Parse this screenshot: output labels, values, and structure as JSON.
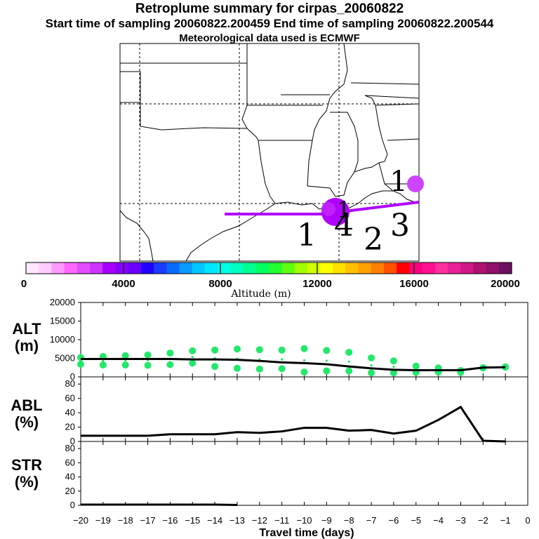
{
  "header": {
    "title": "Retroplume summary for cirpas_20060822",
    "sampling_line": "Start time of sampling 20060822.200459     End time of sampling 20060822.200544",
    "met_line": "Meteorological data used is ECMWF"
  },
  "map": {
    "day_labels": [
      "1",
      "1",
      "2",
      "3",
      "4",
      "1"
    ],
    "trajectory_color": "#b000ff"
  },
  "colorbar": {
    "ticks": [
      "0",
      "4000",
      "8000",
      "12000",
      "16000",
      "20000"
    ],
    "label": "Altitude (m)",
    "colors": [
      "#ffe6ff",
      "#ffccff",
      "#ff99ff",
      "#ff66ff",
      "#e24dff",
      "#cc33ff",
      "#aa00ff",
      "#8a00ff",
      "#6a00ff",
      "#2000ff",
      "#1a3cff",
      "#0a6aff",
      "#0a9aff",
      "#00c8ff",
      "#00e6ff",
      "#00ffe6",
      "#00ffc0",
      "#00ff90",
      "#00ff60",
      "#20ff30",
      "#60ff10",
      "#a0ff00",
      "#d0ff00",
      "#ffff00",
      "#ffe000",
      "#ffc000",
      "#ffa000",
      "#ff8000",
      "#ff5000",
      "#ff0000",
      "#ff0080",
      "#ff1090",
      "#ff30a0",
      "#e8209a",
      "#d01888",
      "#b01070",
      "#90106a",
      "#701060"
    ]
  },
  "chart_data": [
    {
      "type": "line",
      "panel": "ALT",
      "ylabel": "ALT (m)",
      "ylim": [
        0,
        20000
      ],
      "yticks": [
        "0",
        "5000",
        "10000",
        "15000",
        "20000"
      ],
      "x": [
        -20,
        -19,
        -18,
        -17,
        -16,
        -15,
        -14,
        -13,
        -12,
        -11,
        -10,
        -9,
        -8,
        -7,
        -6,
        -5,
        -4,
        -3,
        -2,
        -1
      ],
      "series": [
        {
          "name": "mean altitude",
          "values": [
            4800,
            4800,
            4800,
            4800,
            4800,
            4700,
            4700,
            4600,
            4300,
            3900,
            3700,
            3400,
            2800,
            2300,
            1900,
            1800,
            1800,
            1800,
            2500,
            2600
          ]
        },
        {
          "name": "upper percentile",
          "values": [
            5200,
            5500,
            5700,
            5900,
            6400,
            7000,
            7200,
            7500,
            7300,
            7200,
            7600,
            7100,
            6600,
            5100,
            4300,
            2900,
            2400,
            1700,
            2500,
            2700
          ]
        },
        {
          "name": "lower percentile",
          "values": [
            3400,
            3200,
            3200,
            3100,
            3300,
            3700,
            2800,
            2300,
            2100,
            2200,
            1300,
            1600,
            1600,
            1100,
            1100,
            1200,
            1300,
            1200,
            2400,
            2600
          ]
        }
      ]
    },
    {
      "type": "line",
      "panel": "ABL",
      "ylabel": "ABL (%)",
      "ylim": [
        0,
        90
      ],
      "yticks": [
        "0",
        "20",
        "40",
        "60",
        "80"
      ],
      "x": [
        -20,
        -19,
        -18,
        -17,
        -16,
        -15,
        -14,
        -13,
        -12,
        -11,
        -10,
        -9,
        -8,
        -7,
        -6,
        -5,
        -4,
        -3,
        -2,
        -1
      ],
      "values": [
        8,
        8,
        8,
        8,
        10,
        10,
        10,
        13,
        12,
        14,
        19,
        19,
        15,
        16,
        11,
        15,
        30,
        48,
        1,
        0
      ]
    },
    {
      "type": "line",
      "panel": "STR",
      "ylabel": "STR (%)",
      "ylim": [
        0,
        90
      ],
      "yticks": [
        "0",
        "20",
        "40",
        "60",
        "80"
      ],
      "x": [
        -20,
        -19,
        -18,
        -17,
        -16,
        -15,
        -14,
        -13
      ],
      "values": [
        1,
        1,
        1,
        1,
        1,
        1,
        1,
        0.5
      ]
    }
  ],
  "xaxis": {
    "xlabel": "Travel time (days)",
    "xlim": [
      -20,
      0
    ],
    "ticks": [
      "−20",
      "−19",
      "−18",
      "−17",
      "−16",
      "−15",
      "−14",
      "−13",
      "−12",
      "−11",
      "−10",
      "−9",
      "−8",
      "−7",
      "−6",
      "−5",
      "−4",
      "−3",
      "−2",
      "−1",
      "0"
    ]
  }
}
